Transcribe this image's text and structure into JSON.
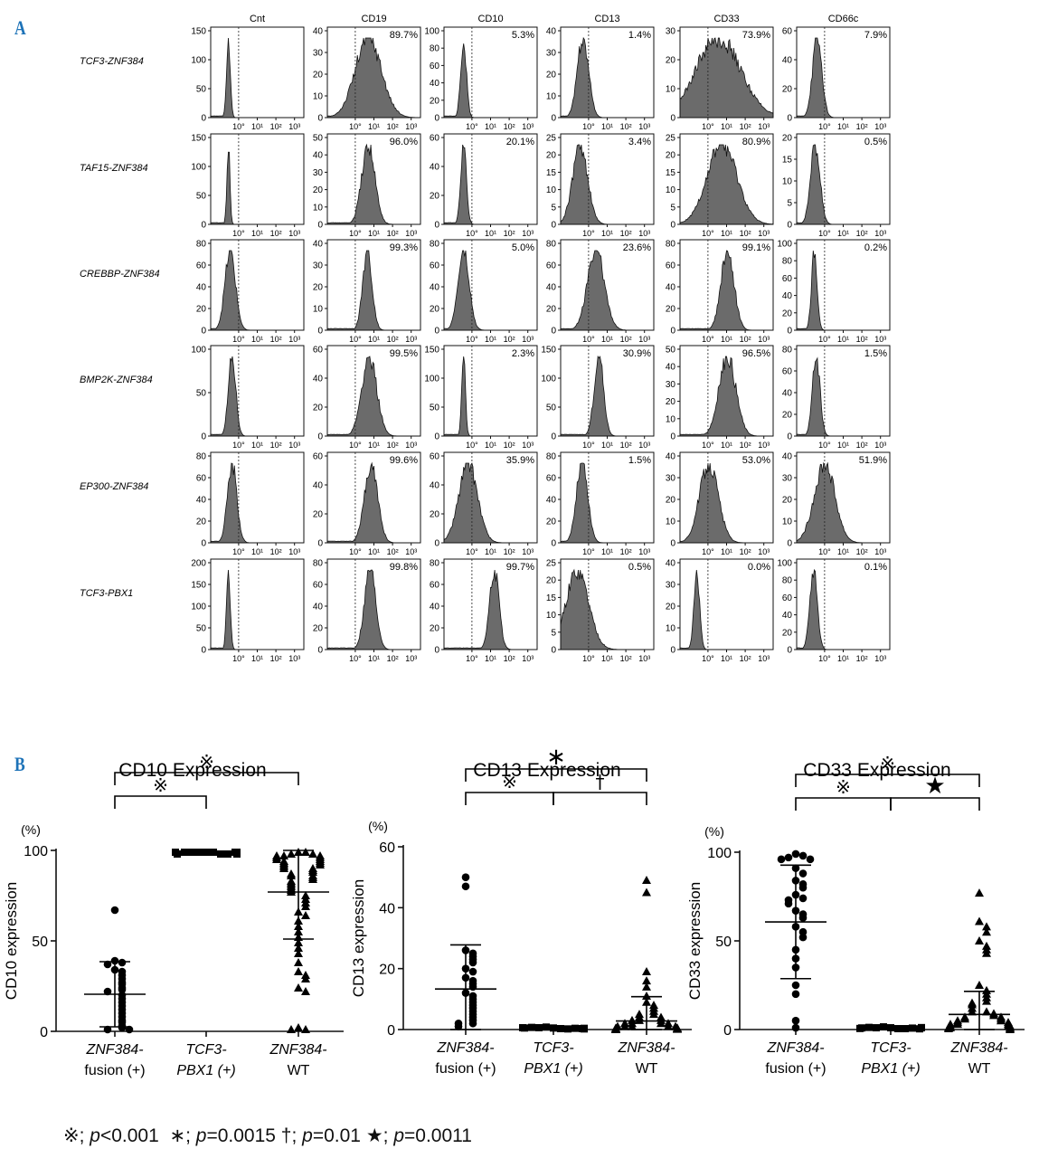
{
  "panel_a_label": "A",
  "panel_b_label": "B",
  "chart_data": [
    {
      "type": "histogram-grid",
      "columns": [
        "Cnt",
        "CD19",
        "CD10",
        "CD13",
        "CD33",
        "CD66c"
      ],
      "rows": [
        "TCF3-ZNF384",
        "TAF15-ZNF384",
        "CREBBP-ZNF384",
        "BMP2K-ZNF384",
        "EP300-ZNF384",
        "TCF3-PBX1"
      ],
      "x_ticks": [
        "10°",
        "10¹",
        "10²",
        "10³"
      ],
      "y_axes": [
        [
          [
            "150",
            "100",
            "50",
            "0"
          ],
          [
            "40",
            "30",
            "20",
            "10",
            "0"
          ],
          [
            "100",
            "80",
            "60",
            "40",
            "20",
            "0"
          ],
          [
            "40",
            "30",
            "20",
            "10",
            "0"
          ],
          [
            "30",
            "20",
            "10",
            "0"
          ],
          [
            "60",
            "40",
            "20",
            "0"
          ]
        ],
        [
          [
            "150",
            "100",
            "50",
            "0"
          ],
          [
            "50",
            "40",
            "30",
            "20",
            "10",
            "0"
          ],
          [
            "60",
            "40",
            "20",
            "0"
          ],
          [
            "25",
            "20",
            "15",
            "10",
            "5",
            "0"
          ],
          [
            "25",
            "20",
            "15",
            "10",
            "5",
            "0"
          ],
          [
            "20",
            "15",
            "10",
            "5",
            "0"
          ]
        ],
        [
          [
            "80",
            "60",
            "40",
            "20",
            "0"
          ],
          [
            "40",
            "30",
            "20",
            "10",
            "0"
          ],
          [
            "80",
            "60",
            "40",
            "20",
            "0"
          ],
          [
            "80",
            "60",
            "40",
            "20",
            "0"
          ],
          [
            "80",
            "60",
            "40",
            "20",
            "0"
          ],
          [
            "100",
            "80",
            "60",
            "40",
            "20",
            "0"
          ]
        ],
        [
          [
            "100",
            "50",
            "0"
          ],
          [
            "60",
            "40",
            "20",
            "0"
          ],
          [
            "150",
            "100",
            "50",
            "0"
          ],
          [
            "150",
            "100",
            "50",
            "0"
          ],
          [
            "50",
            "40",
            "30",
            "20",
            "10",
            "0"
          ],
          [
            "80",
            "60",
            "40",
            "20",
            "0"
          ]
        ],
        [
          [
            "80",
            "60",
            "40",
            "20",
            "0"
          ],
          [
            "60",
            "40",
            "20",
            "0"
          ],
          [
            "60",
            "40",
            "20",
            "0"
          ],
          [
            "80",
            "60",
            "40",
            "20",
            "0"
          ],
          [
            "40",
            "30",
            "20",
            "10",
            "0"
          ],
          [
            "40",
            "30",
            "20",
            "10",
            "0"
          ]
        ],
        [
          [
            "200",
            "150",
            "100",
            "50",
            "0"
          ],
          [
            "80",
            "60",
            "40",
            "20",
            "0"
          ],
          [
            "80",
            "60",
            "40",
            "20",
            "0"
          ],
          [
            "25",
            "20",
            "15",
            "10",
            "5",
            "0"
          ],
          [
            "40",
            "30",
            "20",
            "10",
            "0"
          ],
          [
            "100",
            "80",
            "60",
            "40",
            "20",
            "0"
          ]
        ]
      ],
      "percentages": [
        [
          "",
          "89.7%",
          "5.3%",
          "1.4%",
          "73.9%",
          "7.9%"
        ],
        [
          "",
          "96.0%",
          "20.1%",
          "3.4%",
          "80.9%",
          "0.5%"
        ],
        [
          "",
          "99.3%",
          "5.0%",
          "23.6%",
          "99.1%",
          "0.2%"
        ],
        [
          "",
          "99.5%",
          "2.3%",
          "30.9%",
          "96.5%",
          "1.5%"
        ],
        [
          "",
          "99.6%",
          "35.9%",
          "1.5%",
          "53.0%",
          "51.9%"
        ],
        [
          "",
          "99.8%",
          "99.7%",
          "0.5%",
          "0.0%",
          "0.1%"
        ]
      ],
      "gate_log": 0.0,
      "peaks_log": [
        [
          -0.55,
          0.7,
          -0.45,
          -0.3,
          0.55,
          -0.4
        ],
        [
          -0.55,
          0.7,
          -0.45,
          -0.45,
          0.75,
          -0.5
        ],
        [
          -0.45,
          0.65,
          -0.45,
          0.4,
          1.05,
          -0.55
        ],
        [
          -0.35,
          0.75,
          -0.45,
          0.55,
          1.05,
          -0.45
        ],
        [
          -0.35,
          0.85,
          -0.2,
          -0.35,
          0.05,
          0.0
        ],
        [
          -0.55,
          0.8,
          1.2,
          -0.6,
          -0.6,
          -0.6
        ]
      ],
      "widths_log": [
        [
          0.1,
          0.7,
          0.15,
          0.3,
          1.2,
          0.25
        ],
        [
          0.08,
          0.35,
          0.15,
          0.4,
          0.8,
          0.25
        ],
        [
          0.28,
          0.25,
          0.3,
          0.45,
          0.35,
          0.15
        ],
        [
          0.2,
          0.4,
          0.1,
          0.25,
          0.45,
          0.2
        ],
        [
          0.25,
          0.35,
          0.5,
          0.3,
          0.5,
          0.55
        ],
        [
          0.1,
          0.3,
          0.25,
          0.6,
          0.15,
          0.2
        ]
      ]
    },
    {
      "type": "scatter",
      "title": "CD10 Expression",
      "ylabel": "CD10 expression",
      "unit": "(%)",
      "ylim": [
        0,
        100
      ],
      "yticks": [
        "0",
        "50",
        "100"
      ],
      "categories": [
        [
          "ZNF384-",
          "fusion (+)"
        ],
        [
          "TCF3-",
          "PBX1 (+)"
        ],
        [
          "ZNF384-",
          "WT"
        ]
      ],
      "category_italic_first": [
        true,
        true,
        true
      ],
      "category_italic_second": [
        false,
        true,
        false
      ],
      "markers": [
        "circle",
        "square",
        "triangle"
      ],
      "values": [
        [
          67,
          39,
          38,
          37,
          34,
          33,
          31,
          29,
          27,
          26,
          24,
          23,
          22,
          20,
          18,
          16,
          14,
          12,
          10,
          8,
          6,
          5,
          3,
          2,
          1,
          1
        ],
        [
          99,
          99,
          99,
          98,
          99,
          98,
          99,
          99,
          98,
          99,
          99,
          98
        ],
        [
          99,
          99,
          98,
          98,
          97,
          97,
          97,
          96,
          96,
          95,
          95,
          94,
          94,
          93,
          93,
          92,
          92,
          91,
          90,
          90,
          89,
          88,
          87,
          86,
          86,
          85,
          84,
          83,
          82,
          81,
          80,
          79,
          78,
          77,
          75,
          73,
          71,
          69,
          66,
          64,
          61,
          58,
          55,
          52,
          49,
          46,
          43,
          38,
          33,
          31,
          29,
          24,
          22,
          2,
          1,
          1
        ]
      ],
      "means": [
        20.5,
        98.7,
        77
      ],
      "sds": [
        18,
        0.6,
        26
      ],
      "brackets": [
        {
          "from": 0,
          "to": 2,
          "level": 1,
          "label": "※"
        },
        {
          "from": 0,
          "to": 1,
          "level": 0,
          "label": "※"
        }
      ]
    },
    {
      "type": "scatter",
      "title": "CD13 Expression",
      "ylabel": "CD13 expression",
      "unit": "(%)",
      "ylim": [
        0,
        60
      ],
      "yticks": [
        "0",
        "20",
        "40",
        "60"
      ],
      "categories": [
        [
          "ZNF384-",
          "fusion (+)"
        ],
        [
          "TCF3-",
          "PBX1 (+)"
        ],
        [
          "ZNF384-",
          "WT"
        ]
      ],
      "category_italic_first": [
        true,
        true,
        true
      ],
      "category_italic_second": [
        false,
        true,
        false
      ],
      "markers": [
        "circle",
        "square",
        "triangle"
      ],
      "values": [
        [
          50,
          47,
          26,
          25,
          24,
          23,
          22,
          20,
          19,
          17,
          16,
          15,
          14,
          12,
          11,
          10,
          9,
          8,
          7,
          6,
          5,
          4,
          3,
          2,
          2,
          1
        ],
        [
          0.5,
          0.3,
          0.8,
          0.2,
          0.6,
          0.4,
          0.7,
          0.3,
          0.5,
          0.2,
          0.6,
          0.4
        ],
        [
          49,
          45,
          19,
          16,
          14,
          11,
          9,
          8,
          7,
          6,
          5,
          5,
          4,
          4,
          3,
          3,
          3,
          2,
          2,
          2,
          2,
          1,
          1,
          1,
          1,
          1,
          0.5,
          0.5,
          0.5,
          0.3,
          0.3,
          0.2,
          0.2,
          0.1,
          0.1,
          0
        ]
      ],
      "means": [
        13.3,
        0.5,
        2.8
      ],
      "sds": [
        14.5,
        0.3,
        8
      ],
      "brackets": [
        {
          "from": 0,
          "to": 2,
          "level": 1,
          "label": "∗"
        },
        {
          "from": 0,
          "to": 1,
          "level": 0,
          "label": "※"
        },
        {
          "from": 1,
          "to": 2,
          "level": 0,
          "label": "†"
        }
      ]
    },
    {
      "type": "scatter",
      "title": "CD33 Expression",
      "ylabel": "CD33 expression",
      "unit": "(%)",
      "ylim": [
        0,
        100
      ],
      "yticks": [
        "0",
        "50",
        "100"
      ],
      "categories": [
        [
          "ZNF384-",
          "fusion (+)"
        ],
        [
          "TCF3-",
          "PBX1 (+)"
        ],
        [
          "ZNF384-",
          "WT"
        ]
      ],
      "category_italic_first": [
        true,
        true,
        true
      ],
      "category_italic_second": [
        false,
        true,
        false
      ],
      "markers": [
        "circle",
        "square",
        "triangle"
      ],
      "values": [
        [
          99,
          98,
          97,
          96,
          96,
          91,
          88,
          84,
          82,
          80,
          76,
          74,
          73,
          71,
          67,
          65,
          63,
          58,
          55,
          52,
          45,
          40,
          35,
          25,
          20,
          5,
          1
        ],
        [
          1,
          0.5,
          1.5,
          0.5,
          1,
          0.8,
          1.2,
          0.4,
          0.9,
          1.1,
          0.6,
          1
        ],
        [
          77,
          61,
          58,
          55,
          50,
          47,
          45,
          43,
          25,
          22,
          20,
          18,
          16,
          15,
          14,
          12,
          10,
          10,
          9,
          8,
          7,
          7,
          6,
          6,
          5,
          5,
          4,
          4,
          3,
          3,
          3,
          2,
          2,
          2,
          1,
          1,
          1,
          0.5,
          0.5,
          0
        ]
      ],
      "means": [
        60.7,
        0.9,
        8.5
      ],
      "sds": [
        32,
        0.4,
        13
      ],
      "brackets": [
        {
          "from": 0,
          "to": 2,
          "level": 1,
          "label": "※"
        },
        {
          "from": 0,
          "to": 1,
          "level": 0,
          "label": "※"
        },
        {
          "from": 1,
          "to": 2,
          "level": 0,
          "label": "★"
        }
      ]
    }
  ],
  "legend": {
    "sym1": "※",
    "sep1": "; ",
    "p1": "p",
    "v1": "<0.001",
    "sym2": "∗",
    "sep2": "; ",
    "p2": "p",
    "v2": "=0.0015",
    "sym3": "†",
    "sep3": "; ",
    "p3": "p",
    "v3": "=0.01",
    "sym4": "★",
    "sep4": "; ",
    "p4": "p",
    "v4": "=0.0011"
  }
}
